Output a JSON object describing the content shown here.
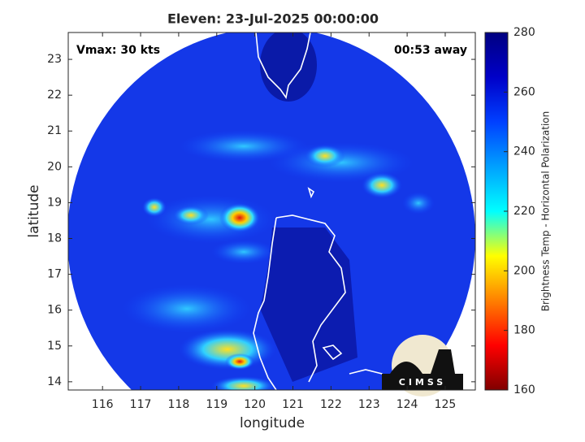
{
  "chart_data": {
    "type": "map",
    "title": "Eleven: 23-Jul-2025 00:00:00",
    "xlabel": "longitude",
    "ylabel": "latitude",
    "annotations": [
      "Vmax: 30 kts",
      "00:53 away"
    ],
    "xlim": [
      115.1,
      125.79
    ],
    "ylim": [
      13.77,
      23.75
    ],
    "xticks": [
      116,
      117,
      118,
      119,
      120,
      121,
      122,
      123,
      124,
      125
    ],
    "yticks": [
      14,
      15,
      16,
      17,
      18,
      19,
      20,
      21,
      22,
      23
    ],
    "colorbar": {
      "label": "Brightness Temp - Horizontal Polarization",
      "colormap": "jet",
      "lim": [
        160,
        280
      ],
      "ticks": [
        160,
        180,
        200,
        220,
        240,
        260,
        280
      ]
    },
    "logo": "CIMSS"
  }
}
